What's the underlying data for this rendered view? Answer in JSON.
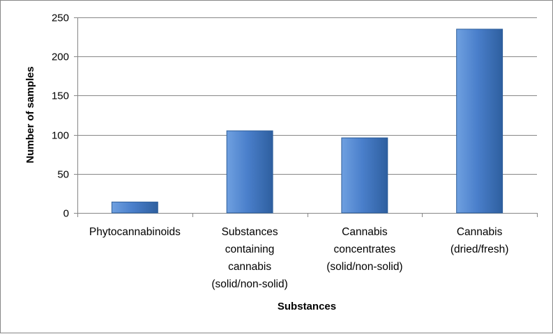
{
  "chart_data": {
    "type": "bar",
    "categories": [
      [
        "Phytocannabinoids"
      ],
      [
        "Substances",
        "containing",
        "cannabis",
        "(solid/non-solid)"
      ],
      [
        "Cannabis",
        "concentrates",
        "(solid/non-solid)"
      ],
      [
        "Cannabis",
        "(dried/fresh)"
      ]
    ],
    "values": [
      14,
      105,
      96,
      235
    ],
    "title": "",
    "xlabel": "Substances",
    "ylabel": "Number of samples",
    "ylim": [
      0,
      250
    ],
    "yticks": [
      0,
      50,
      100,
      150,
      200,
      250
    ],
    "grid": true,
    "legend": "none",
    "colors": {
      "bar_light": "#6fa0e0",
      "bar_mid": "#4a7fcb",
      "bar_dark": "#2e5f9f",
      "bar_stroke": "#2c5d9a",
      "grid": "#868686",
      "axis": "#868686"
    }
  }
}
